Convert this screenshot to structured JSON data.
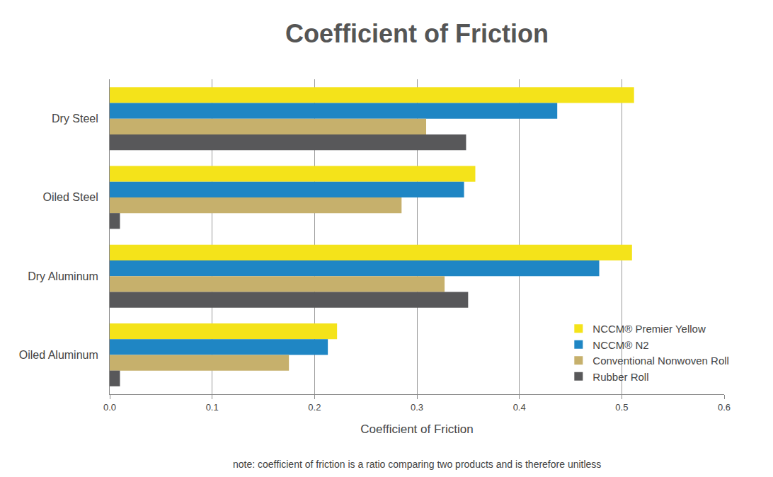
{
  "chart_data": {
    "type": "bar",
    "orientation": "horizontal",
    "title": "Coefficient of Friction",
    "x_label": "Coefficient of Friction",
    "annotations": [
      "note: coefficient of friction is a ratio comparing two products and is therefore unitless"
    ],
    "categories": [
      "Dry Steel",
      "Oiled Steel",
      "Dry Aluminum",
      "Oiled Aluminum"
    ],
    "series": [
      {
        "name": "NCCM® Premier Yellow",
        "color": "#f4e31a",
        "values": [
          0.512,
          0.357,
          0.51,
          0.222
        ]
      },
      {
        "name": "NCCM® N2",
        "color": "#1f86c4",
        "values": [
          0.437,
          0.346,
          0.478,
          0.213
        ]
      },
      {
        "name": "Conventional Nonwoven Roll",
        "color": "#c6b06c",
        "values": [
          0.309,
          0.285,
          0.327,
          0.175
        ]
      },
      {
        "name": "Rubber Roll",
        "color": "#58585a",
        "values": [
          0.348,
          0.01,
          0.35,
          0.01
        ]
      }
    ],
    "xlim": [
      0,
      0.6
    ],
    "xticks": [
      {
        "value": 0,
        "label": "0.0"
      },
      0.1,
      0.2,
      0.3,
      0.4,
      0.5,
      0.6
    ],
    "grid": true,
    "legend": "lower right"
  }
}
